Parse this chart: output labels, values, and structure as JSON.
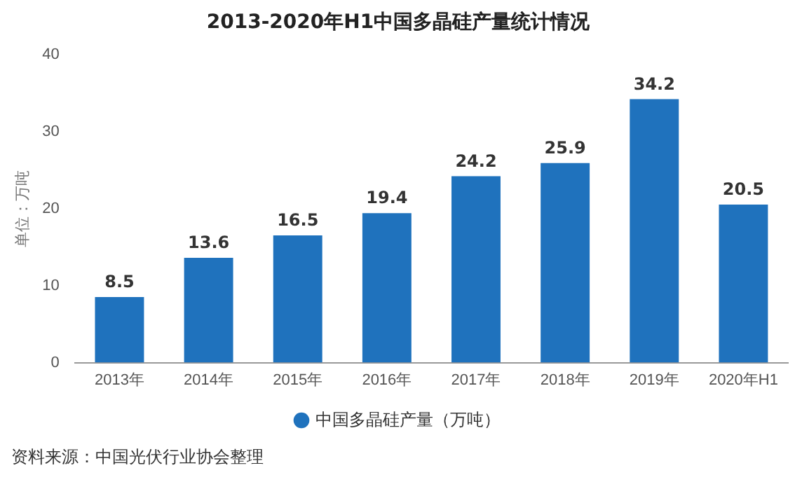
{
  "chart_data": {
    "type": "bar",
    "title": "2013-2020年H1中国多晶硅产量统计情况",
    "ylabel": "单位：万吨",
    "categories": [
      "2013年",
      "2014年",
      "2015年",
      "2016年",
      "2017年",
      "2018年",
      "2019年",
      "2020年H1"
    ],
    "series": [
      {
        "name": "中国多晶硅产量（万吨）",
        "color": "#1f72bd",
        "values": [
          8.5,
          13.6,
          16.5,
          19.4,
          24.2,
          25.9,
          34.2,
          20.5
        ]
      }
    ],
    "ylim": [
      0,
      40
    ],
    "yticks": [
      0,
      10,
      20,
      30,
      40
    ],
    "grid": false,
    "legend": "bottom",
    "data_labels": true,
    "annotations": [
      "资料来源：中国光伏行业协会整理"
    ]
  }
}
